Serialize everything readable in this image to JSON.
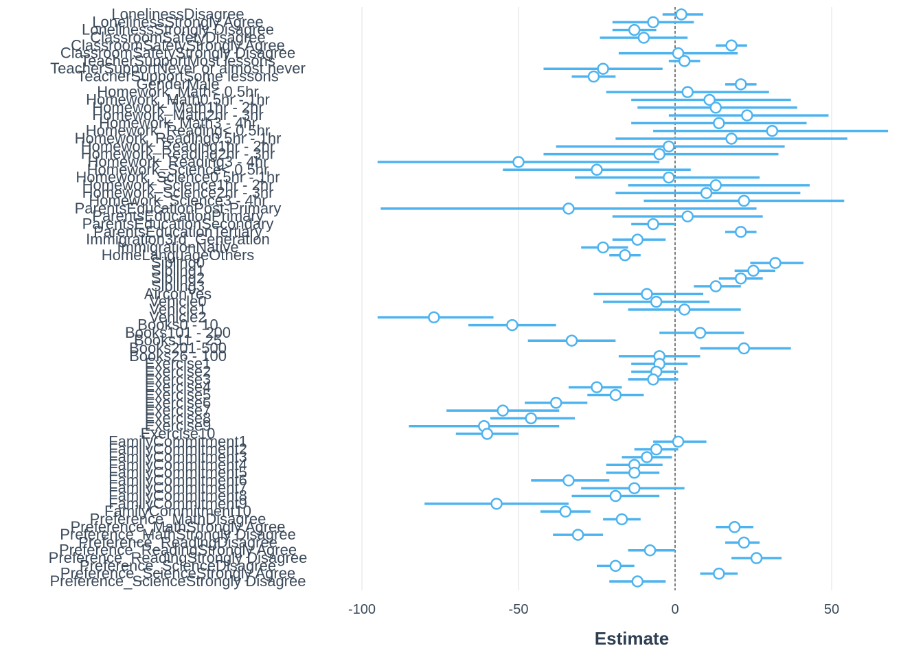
{
  "chart_data": {
    "type": "scatter",
    "subtype": "coefficient-plot-with-error-bars",
    "xlabel": "Estimate",
    "xlim": [
      -100,
      67
    ],
    "xticks": [
      -100,
      -50,
      0,
      50
    ],
    "reference_line_x": 0,
    "grid": "vertical major gridlines only",
    "colors": {
      "marker": "#4db3ef",
      "interval": "#4db3ef",
      "grid": "#e5e5e5",
      "reference": "#000000",
      "text": "#3b4a5a"
    },
    "terms": [
      {
        "term": "LonelinessDisagree",
        "estimate": 2,
        "low": -4,
        "high": 9
      },
      {
        "term": "LonelinessStrongly Agree",
        "estimate": -7,
        "low": -20,
        "high": 6
      },
      {
        "term": "LonelinessStrongly Disagree",
        "estimate": -13,
        "low": -20,
        "high": -6
      },
      {
        "term": "ClassroomSafetyDisagree",
        "estimate": -10,
        "low": -24,
        "high": 4
      },
      {
        "term": "ClassroomSafetyStrongly Agree",
        "estimate": 18,
        "low": 13,
        "high": 23
      },
      {
        "term": "ClassroomSafetyStrongly Disagree",
        "estimate": 1,
        "low": -18,
        "high": 20
      },
      {
        "term": "TeacherSupportMost lessons",
        "estimate": 3,
        "low": -2,
        "high": 8
      },
      {
        "term": "TeacherSupportNever or almost never",
        "estimate": -23,
        "low": -42,
        "high": -4
      },
      {
        "term": "TeacherSupportSome lessons",
        "estimate": -26,
        "low": -33,
        "high": -19
      },
      {
        "term": "GenderMale",
        "estimate": 21,
        "low": 16,
        "high": 26
      },
      {
        "term": "Homework_Math< 0.5hr",
        "estimate": 4,
        "low": -22,
        "high": 30
      },
      {
        "term": "Homework_Math0.5hr - 1hr",
        "estimate": 11,
        "low": -14,
        "high": 37
      },
      {
        "term": "Homework_Math1hr - 2hr",
        "estimate": 13,
        "low": -12,
        "high": 39
      },
      {
        "term": "Homework_Math2hr - 3hr",
        "estimate": 23,
        "low": -2,
        "high": 49
      },
      {
        "term": "Homework_Math3 - 4hr",
        "estimate": 14,
        "low": -14,
        "high": 42
      },
      {
        "term": "Homework_Reading< 0.5hr",
        "estimate": 31,
        "low": -7,
        "high": 68
      },
      {
        "term": "Homework_Reading0.5hr - 1hr",
        "estimate": 18,
        "low": -19,
        "high": 55
      },
      {
        "term": "Homework_Reading1hr - 2hr",
        "estimate": -2,
        "low": -38,
        "high": 35
      },
      {
        "term": "Homework_Reading2hr - 3hr",
        "estimate": -5,
        "low": -42,
        "high": 33
      },
      {
        "term": "Homework_Reading3 - 4hr",
        "estimate": -50,
        "low": -95,
        "high": -5
      },
      {
        "term": "Homework_Science< 0.5hr",
        "estimate": -25,
        "low": -55,
        "high": 5
      },
      {
        "term": "Homework_Science0.5hr - 1hr",
        "estimate": -2,
        "low": -32,
        "high": 27
      },
      {
        "term": "Homework_Science1hr - 2hr",
        "estimate": 13,
        "low": -15,
        "high": 43
      },
      {
        "term": "Homework_Science2hr - 3hr",
        "estimate": 10,
        "low": -19,
        "high": 40
      },
      {
        "term": "Homework_Science3 - 4hr",
        "estimate": 22,
        "low": -10,
        "high": 54
      },
      {
        "term": "ParentsEducationPost-Primary",
        "estimate": -34,
        "low": -94,
        "high": 26
      },
      {
        "term": "ParentsEducationPrimary",
        "estimate": 4,
        "low": -20,
        "high": 28
      },
      {
        "term": "ParentsEducationSecondary",
        "estimate": -7,
        "low": -14,
        "high": 0
      },
      {
        "term": "ParentsEducationTertiary",
        "estimate": 21,
        "low": 16,
        "high": 26
      },
      {
        "term": "Immigration3rd_Generation",
        "estimate": -12,
        "low": -20,
        "high": -3
      },
      {
        "term": "ImmigrationNative",
        "estimate": -23,
        "low": -30,
        "high": -15
      },
      {
        "term": "HomeLanguageOthers",
        "estimate": -16,
        "low": -21,
        "high": -11
      },
      {
        "term": "Sibling0",
        "estimate": 32,
        "low": 24,
        "high": 41
      },
      {
        "term": "Sibling1",
        "estimate": 25,
        "low": 19,
        "high": 32
      },
      {
        "term": "Sibling2",
        "estimate": 21,
        "low": 14,
        "high": 28
      },
      {
        "term": "Sibling3",
        "estimate": 13,
        "low": 6,
        "high": 21
      },
      {
        "term": "AirconYes",
        "estimate": -9,
        "low": -26,
        "high": 9
      },
      {
        "term": "Vehicle0",
        "estimate": -6,
        "low": -23,
        "high": 11
      },
      {
        "term": "Vehicle1",
        "estimate": 3,
        "low": -15,
        "high": 21
      },
      {
        "term": "Vehicle2",
        "estimate": -77,
        "low": -95,
        "high": -58
      },
      {
        "term": "Books0 - 10",
        "estimate": -52,
        "low": -66,
        "high": -38
      },
      {
        "term": "Books101 - 200",
        "estimate": 8,
        "low": -5,
        "high": 22
      },
      {
        "term": "Books11 - 25",
        "estimate": -33,
        "low": -47,
        "high": -19
      },
      {
        "term": "Books201-500",
        "estimate": 22,
        "low": 8,
        "high": 37
      },
      {
        "term": "Books26 - 100",
        "estimate": -5,
        "low": -18,
        "high": 8
      },
      {
        "term": "Exercise1",
        "estimate": -5,
        "low": -14,
        "high": 4
      },
      {
        "term": "Exercise2",
        "estimate": -6,
        "low": -14,
        "high": 1
      },
      {
        "term": "Exercise3",
        "estimate": -7,
        "low": -15,
        "high": 1
      },
      {
        "term": "Exercise4",
        "estimate": -25,
        "low": -34,
        "high": -17
      },
      {
        "term": "Exercise5",
        "estimate": -19,
        "low": -28,
        "high": -10
      },
      {
        "term": "Exercise6",
        "estimate": -38,
        "low": -48,
        "high": -28
      },
      {
        "term": "Exercise7",
        "estimate": -55,
        "low": -73,
        "high": -37
      },
      {
        "term": "Exercise8",
        "estimate": -46,
        "low": -59,
        "high": -32
      },
      {
        "term": "Exercise9",
        "estimate": -61,
        "low": -85,
        "high": -37
      },
      {
        "term": "Exercise10",
        "estimate": -60,
        "low": -70,
        "high": -50
      },
      {
        "term": "FamilyCommitment1",
        "estimate": 1,
        "low": -7,
        "high": 10
      },
      {
        "term": "FamilyCommitment2",
        "estimate": -6,
        "low": -13,
        "high": 1
      },
      {
        "term": "FamilyCommitment3",
        "estimate": -9,
        "low": -17,
        "high": -1
      },
      {
        "term": "FamilyCommitment4",
        "estimate": -13,
        "low": -22,
        "high": -4
      },
      {
        "term": "FamilyCommitment5",
        "estimate": -13,
        "low": -22,
        "high": -5
      },
      {
        "term": "FamilyCommitment6",
        "estimate": -34,
        "low": -46,
        "high": -21
      },
      {
        "term": "FamilyCommitment7",
        "estimate": -13,
        "low": -30,
        "high": 3
      },
      {
        "term": "FamilyCommitment8",
        "estimate": -19,
        "low": -33,
        "high": -5
      },
      {
        "term": "FamilyCommitment9",
        "estimate": -57,
        "low": -80,
        "high": -34
      },
      {
        "term": "FamilyCommitment10",
        "estimate": -35,
        "low": -43,
        "high": -27
      },
      {
        "term": "Preference_MathDisagree",
        "estimate": -17,
        "low": -23,
        "high": -11
      },
      {
        "term": "Preference_MathStrongly Agree",
        "estimate": 19,
        "low": 13,
        "high": 25
      },
      {
        "term": "Preference_MathStrongly Disagree",
        "estimate": -31,
        "low": -39,
        "high": -23
      },
      {
        "term": "Preference_ReadingDisagree",
        "estimate": 22,
        "low": 16,
        "high": 27
      },
      {
        "term": "Preference_ReadingStrongly Agree",
        "estimate": -8,
        "low": -15,
        "high": 0
      },
      {
        "term": "Preference_ReadingStrongly Disagree",
        "estimate": 26,
        "low": 18,
        "high": 34
      },
      {
        "term": "Preference_ScienceDisagree",
        "estimate": -19,
        "low": -25,
        "high": -13
      },
      {
        "term": "Preference_ScienceStrongly Agree",
        "estimate": 14,
        "low": 8,
        "high": 20
      },
      {
        "term": "Preference_ScienceStrongly Disagree",
        "estimate": -12,
        "low": -21,
        "high": -3
      }
    ]
  }
}
